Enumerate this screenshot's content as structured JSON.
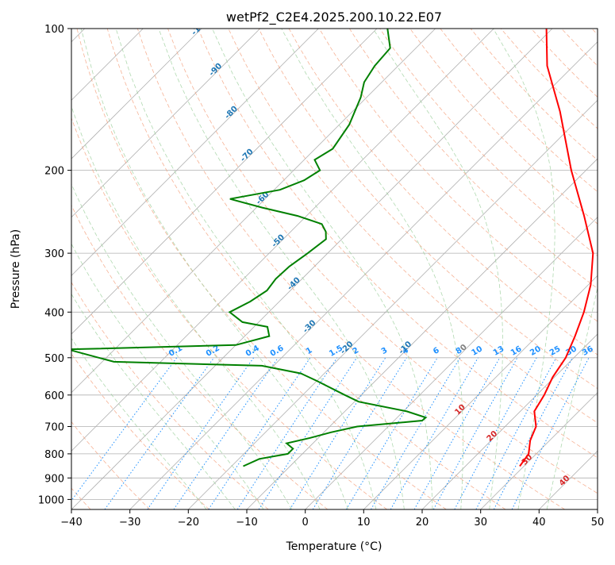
{
  "chart_data": {
    "type": "line",
    "subtype": "skew-t log-p diagram",
    "title": "wetPf2_C2E4.2025.200.10.22.E07",
    "xlabel": "Temperature (°C)",
    "ylabel": "Pressure (hPa)",
    "xlim": [
      -40,
      50
    ],
    "ylim": [
      1050,
      100
    ],
    "y_scale": "log",
    "grid": true,
    "x_ticks": [
      -40,
      -30,
      -20,
      -10,
      0,
      10,
      20,
      30,
      40,
      50
    ],
    "x_tick_labels": [
      "−40",
      "−30",
      "−20",
      "−10",
      "0",
      "10",
      "20",
      "30",
      "40",
      "50"
    ],
    "y_ticks": [
      100,
      200,
      300,
      400,
      500,
      600,
      700,
      800,
      900,
      1000
    ],
    "y_tick_labels": [
      "100",
      "200",
      "300",
      "400",
      "500",
      "600",
      "700",
      "800",
      "900",
      "1000"
    ],
    "colors": {
      "temperature": "#ff0000",
      "dewpoint": "#008000",
      "isotherm_labels": "#d62728",
      "dry_adiabat_labels": "#1f77b4",
      "mixing_ratio_labels": "#1e90ff",
      "zero_label": "#808080"
    },
    "series": [
      {
        "p": [
          850,
          800,
          750,
          700,
          650,
          600,
          550,
          500,
          450,
          400,
          350,
          300,
          250,
          200,
          150,
          120,
          100
        ],
        "t": [
          29.3,
          28.7,
          26.7,
          25.3,
          22.4,
          21.3,
          19.7,
          18.6,
          16.5,
          13.9,
          10.4,
          5.4,
          -2.5,
          -12.5,
          -24.5,
          -34.5,
          -41.0
        ]
      },
      {
        "p": [
          850,
          820,
          800,
          780,
          760,
          740,
          720,
          700,
          680,
          670,
          650,
          620,
          600,
          560,
          540,
          520,
          510,
          480,
          470,
          450,
          430,
          420,
          400,
          380,
          360,
          340,
          320,
          300,
          280,
          270,
          260,
          250,
          240,
          230,
          220,
          210,
          200,
          190,
          180,
          160,
          140,
          130,
          120,
          110,
          100
        ],
        "td": [
          -18,
          -16.5,
          -12.5,
          -12.5,
          -14.5,
          -11.4,
          -8.8,
          -5.3,
          4.8,
          4.9,
          0.6,
          -9.3,
          -12.8,
          -20.0,
          -24.0,
          -32.0,
          -58.0,
          -68.0,
          -40.0,
          -35.8,
          -37.7,
          -42.8,
          -46.7,
          -45.0,
          -44.0,
          -44.5,
          -44.3,
          -43.4,
          -42.7,
          -44.0,
          -46.0,
          -51.5,
          -59.0,
          -66.0,
          -59.0,
          -56.5,
          -55.5,
          -58.2,
          -57.0,
          -58.3,
          -61.0,
          -63.0,
          -64.0,
          -64.4,
          -68.2
        ]
      }
    ],
    "dry_adiabat_labels": [
      "-100",
      "-90",
      "-80",
      "-70",
      "-60",
      "-50",
      "-40",
      "-30",
      "-20",
      "-10",
      "0",
      "10",
      "20",
      "30",
      "40"
    ],
    "mixing_ratio_labels": [
      "0.1",
      "0.2",
      "0.4",
      "0.6",
      "1",
      "1.5",
      "2",
      "3",
      "4",
      "6",
      "8",
      "10",
      "13",
      "16",
      "20",
      "25",
      "30",
      "36"
    ]
  }
}
